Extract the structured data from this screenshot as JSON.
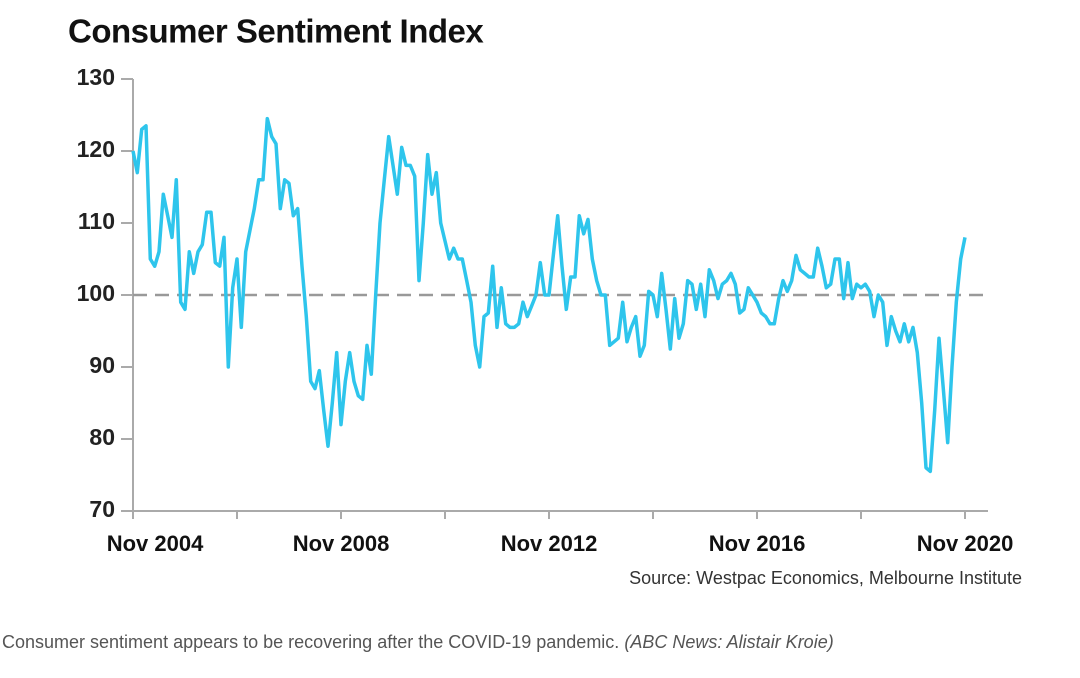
{
  "chart_data": {
    "type": "line",
    "title": "Consumer Sentiment Index",
    "source": "Source: Westpac Economics, Melbourne Institute",
    "caption": "Consumer sentiment appears to be recovering after the COVID-19 pandemic.",
    "caption_credit": "(ABC News: Alistair Kroie)",
    "categories": [
      "Nov 2004",
      null,
      null,
      null,
      null,
      null,
      null,
      null,
      null,
      null,
      null,
      null,
      null,
      null,
      null,
      null,
      null,
      null,
      null,
      null,
      null,
      null,
      null,
      null,
      null,
      null,
      null,
      null,
      null,
      null,
      null,
      null,
      null,
      null,
      null,
      null,
      null,
      null,
      null,
      null,
      null,
      null,
      null,
      null,
      null,
      null,
      null,
      null,
      "Nov 2008",
      null,
      null,
      null,
      null,
      null,
      null,
      null,
      null,
      null,
      null,
      null,
      null,
      null,
      null,
      null,
      null,
      null,
      null,
      null,
      null,
      null,
      null,
      null,
      null,
      null,
      null,
      null,
      null,
      null,
      null,
      null,
      null,
      null,
      null,
      null,
      null,
      null,
      null,
      null,
      null,
      null,
      null,
      null,
      null,
      null,
      null,
      null,
      "Nov 2012",
      null,
      null,
      null,
      null,
      null,
      null,
      null,
      null,
      null,
      null,
      null,
      null,
      null,
      null,
      null,
      null,
      null,
      null,
      null,
      null,
      null,
      null,
      null,
      null,
      null,
      null,
      null,
      null,
      null,
      null,
      null,
      null,
      null,
      null,
      null,
      null,
      null,
      null,
      null,
      null,
      null,
      null,
      null,
      null,
      null,
      null,
      null,
      "Nov 2016",
      null,
      null,
      null,
      null,
      null,
      null,
      null,
      null,
      null,
      null,
      null,
      null,
      null,
      null,
      null,
      null,
      null,
      null,
      null,
      null,
      null,
      null,
      null,
      null,
      null,
      null,
      null,
      null,
      null,
      null,
      null,
      null,
      null,
      null,
      null,
      null,
      null,
      null,
      null,
      null,
      null,
      null,
      null,
      null,
      null,
      null,
      null,
      "Nov 2020"
    ],
    "values": [
      120,
      117,
      123,
      123.5,
      105,
      104,
      106,
      114,
      111,
      108,
      116,
      99,
      98,
      106,
      103,
      106,
      107,
      111.5,
      111.5,
      104.5,
      104,
      108,
      90,
      101,
      105,
      95.5,
      106,
      109,
      112,
      116,
      116,
      124.5,
      122,
      121,
      112,
      116,
      115.5,
      111,
      112,
      104,
      97,
      88,
      87,
      89.5,
      84,
      79,
      85,
      92,
      82,
      88,
      92,
      88,
      86,
      85.5,
      93,
      89,
      100,
      110,
      116,
      122,
      118,
      114,
      120.5,
      118,
      118,
      116.5,
      102,
      110,
      119.5,
      114,
      117,
      110,
      107.5,
      105,
      106.5,
      105,
      105,
      102,
      99,
      93,
      90,
      97,
      97.5,
      104,
      95.5,
      101,
      96,
      95.5,
      95.5,
      96,
      99,
      97,
      98.5,
      100,
      104.5,
      100,
      100,
      105.5,
      111,
      104,
      98,
      102.5,
      102.5,
      111,
      108.5,
      110.5,
      105,
      102,
      100,
      100,
      93,
      93.5,
      94,
      99,
      93.5,
      95.5,
      97,
      91.5,
      93,
      100.5,
      100,
      97,
      103,
      98,
      92.5,
      99.5,
      94,
      96,
      102,
      101.5,
      98,
      101.5,
      97,
      103.5,
      102,
      99.5,
      101.5,
      102,
      103,
      101.5,
      97.5,
      98,
      101,
      100,
      99,
      97.5,
      97,
      96,
      96,
      99.5,
      102,
      100.5,
      102,
      105.5,
      103.5,
      103,
      102.5,
      102.5,
      106.5,
      104,
      101,
      101.5,
      105,
      105,
      99.5,
      104.5,
      99.5,
      101.5,
      101,
      101.5,
      100.5,
      97,
      100,
      99,
      93,
      97,
      95,
      93.5,
      96,
      93.5,
      95.5,
      92,
      85,
      76,
      75.5,
      84,
      94,
      87,
      79.5,
      90,
      99,
      105,
      108
    ],
    "color": "#2ec5ec",
    "ylim": [
      70,
      130
    ],
    "yticks": [
      70,
      80,
      90,
      100,
      110,
      120,
      130
    ],
    "reference_line": 100,
    "reference_color": "#999999"
  }
}
